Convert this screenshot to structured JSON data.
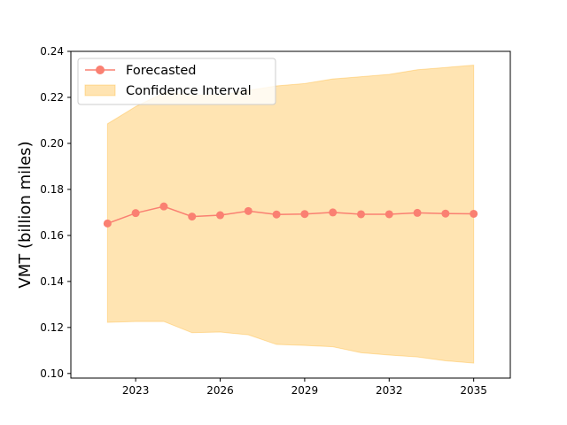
{
  "chart_data": {
    "type": "line",
    "title": "",
    "xlabel": "",
    "ylabel": "VMT (billion miles)",
    "x": [
      2022,
      2023,
      2024,
      2025,
      2026,
      2027,
      2028,
      2029,
      2030,
      2031,
      2032,
      2033,
      2034,
      2035
    ],
    "series": [
      {
        "name": "Forecasted",
        "type": "line",
        "color": "#fa8072",
        "marker": "circle",
        "values": [
          0.1652,
          0.1697,
          0.1726,
          0.1682,
          0.1688,
          0.1706,
          0.1691,
          0.1693,
          0.17,
          0.1692,
          0.1692,
          0.1698,
          0.1695,
          0.1694
        ]
      },
      {
        "name": "Confidence Interval",
        "type": "area-band",
        "color": "#ffa500",
        "opacity": 0.3,
        "lower": [
          0.1222,
          0.1226,
          0.1226,
          0.1177,
          0.118,
          0.1168,
          0.1126,
          0.1122,
          0.1116,
          0.109,
          0.108,
          0.1072,
          0.1055,
          0.1045
        ],
        "upper": [
          0.2085,
          0.216,
          0.222,
          0.221,
          0.221,
          0.223,
          0.225,
          0.226,
          0.228,
          0.229,
          0.23,
          0.232,
          0.233,
          0.234
        ]
      }
    ],
    "xlim": [
      2020.7,
      2036.3
    ],
    "ylim": [
      0.098,
      0.24
    ],
    "xticks": [
      2023,
      2026,
      2029,
      2032,
      2035
    ],
    "xtick_labels": [
      "2023",
      "2026",
      "2029",
      "2032",
      "2035"
    ],
    "yticks": [
      0.1,
      0.12,
      0.14,
      0.16,
      0.18,
      0.2,
      0.22,
      0.24
    ],
    "ytick_labels": [
      "0.10",
      "0.12",
      "0.14",
      "0.16",
      "0.18",
      "0.20",
      "0.22",
      "0.24"
    ],
    "grid": false,
    "legend_position": "top-left"
  }
}
